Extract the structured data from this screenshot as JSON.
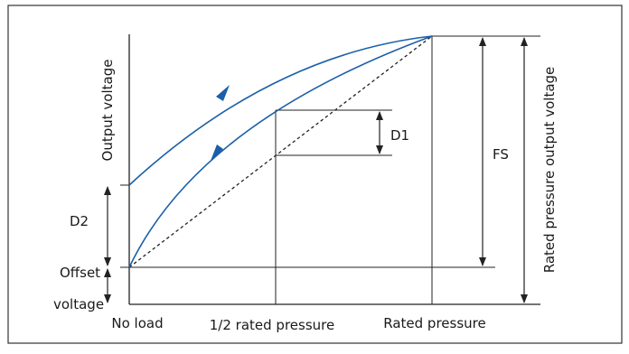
{
  "diagram": {
    "labels": {
      "y_axis": "Output voltage",
      "right_axis": "Rated pressure output voltage",
      "offset_line1": "Offset",
      "offset_line2": "voltage",
      "d1": "D1",
      "d2": "D2",
      "fs": "FS",
      "x_no_load": "No load",
      "x_half": "1/2 rated pressure",
      "x_rated": "Rated pressure"
    },
    "colors": {
      "curve": "#1b5fa8",
      "lines": "#222222",
      "frame": "#333333"
    }
  }
}
